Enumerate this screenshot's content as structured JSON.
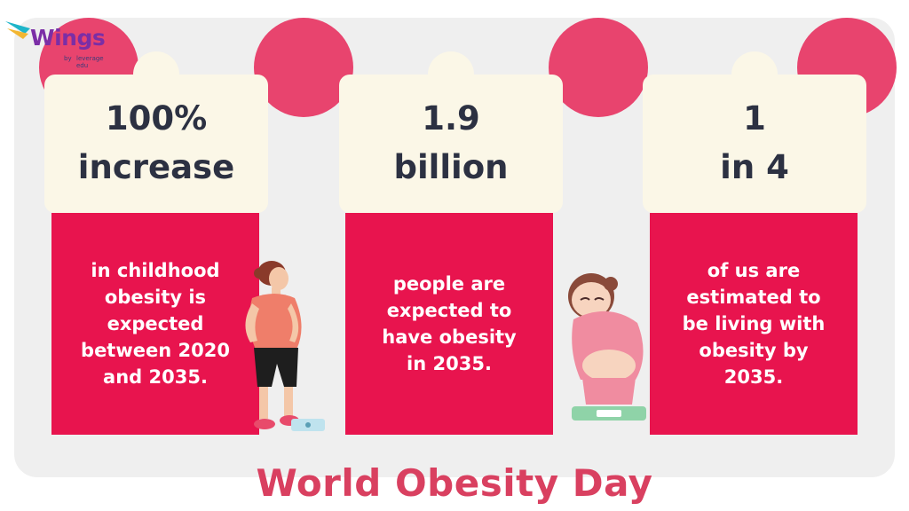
{
  "logo": {
    "name": "Wings",
    "sub_line1": "by",
    "sub_line2": "leverage",
    "sub_line3": "edu"
  },
  "cards": [
    {
      "stat_lines": [
        "100%",
        "increase"
      ],
      "desc_lines": [
        "in childhood",
        "obesity is",
        "expected",
        "between 2020",
        "and 2035."
      ]
    },
    {
      "stat_lines": [
        "1.9",
        "billion"
      ],
      "desc_lines": [
        "people are",
        "expected to",
        "have obesity",
        "in 2035."
      ]
    },
    {
      "stat_lines": [
        "1",
        "in 4"
      ],
      "desc_lines": [
        "of us are",
        "estimated to",
        "be living with",
        "obesity by",
        "2035."
      ]
    }
  ],
  "title": "World Obesity Day",
  "colors": {
    "panel": "#efefef",
    "accent_pink": "#e8446e",
    "card_red": "#e8144e",
    "cream": "#fbf7e7",
    "stat_text": "#2c3142",
    "title": "#d94060"
  }
}
